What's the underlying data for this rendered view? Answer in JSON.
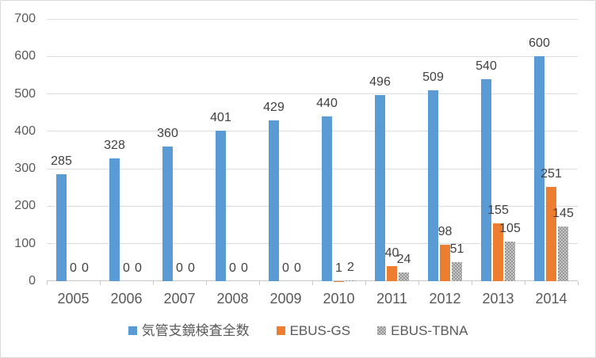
{
  "chart_data": {
    "type": "bar",
    "title": "",
    "categories": [
      "2005",
      "2006",
      "2007",
      "2008",
      "2009",
      "2010",
      "2011",
      "2012",
      "2013",
      "2014"
    ],
    "series": [
      {
        "key": "bronchoscopy-total",
        "name": "気管支鏡検査全数",
        "color": "#5B9BD5",
        "pattern": false,
        "values": [
          285,
          328,
          360,
          401,
          429,
          440,
          496,
          509,
          540,
          600
        ]
      },
      {
        "key": "ebus-gs",
        "name": "EBUS-GS",
        "color": "#ED7D31",
        "pattern": false,
        "values": [
          0,
          0,
          0,
          0,
          0,
          1,
          40,
          98,
          155,
          251
        ]
      },
      {
        "key": "ebus-tbna",
        "name": "EBUS-TBNA",
        "color": "#A5A5A5",
        "pattern": true,
        "values": [
          0,
          0,
          0,
          0,
          0,
          2,
          24,
          51,
          105,
          145
        ]
      }
    ],
    "y_axis": {
      "min": 0,
      "max": 700,
      "step": 100,
      "ticks": [
        0,
        100,
        200,
        300,
        400,
        500,
        600,
        700
      ]
    },
    "xlabel": "",
    "ylabel": "",
    "legend_position": "bottom-center",
    "grid": "horizontal",
    "data_labels_visible": true,
    "colors": {
      "gridline": "#DCDCDC",
      "axis_line": "#C9C9C9",
      "axis_text": "#595959",
      "data_label_text": "#404040",
      "background": "#FFFFFF",
      "frame_border": "#D9D9D9"
    }
  }
}
